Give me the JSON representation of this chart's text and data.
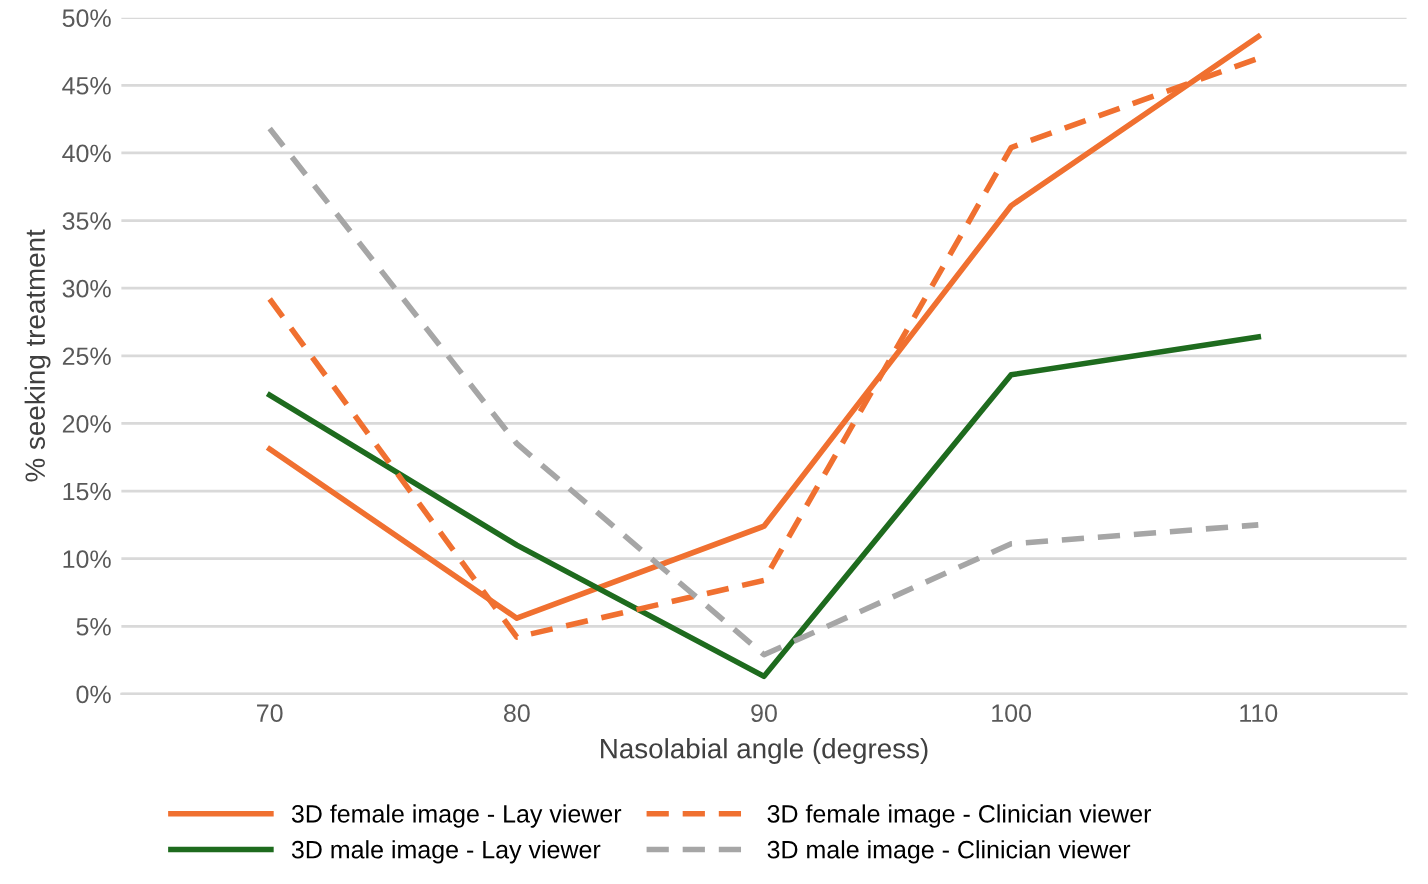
{
  "chart_data": {
    "type": "line",
    "xlabel": "Nasolabial angle (degress)",
    "ylabel": "% seeking treatment",
    "categories": [
      "70",
      "80",
      "90",
      "100",
      "110"
    ],
    "series": [
      {
        "name": "3D female image - Lay viewer",
        "color": "#f07030",
        "line_style": "solid",
        "values": [
          18.1,
          5.6,
          12.4,
          36.1,
          48.6
        ]
      },
      {
        "name": "3D male image - Lay viewer",
        "color": "#1e6b1e",
        "line_style": "solid",
        "values": [
          22.1,
          11.0,
          1.3,
          23.6,
          26.4
        ]
      },
      {
        "name": "3D female image - Clinician viewer",
        "color": "#f07030",
        "line_style": "dashed",
        "values": [
          29.2,
          4.2,
          8.4,
          40.4,
          47.0
        ]
      },
      {
        "name": "3D male image - Clinician viewer",
        "color": "#a6a6a6",
        "line_style": "dashed",
        "values": [
          41.8,
          18.5,
          2.9,
          11.1,
          12.5
        ]
      }
    ],
    "ylim": [
      0,
      50
    ],
    "yticks": [
      {
        "value": 0,
        "label": "0%"
      },
      {
        "value": 5,
        "label": "5%"
      },
      {
        "value": 10,
        "label": "10%"
      },
      {
        "value": 15,
        "label": "15%"
      },
      {
        "value": 20,
        "label": "20%"
      },
      {
        "value": 25,
        "label": "25%"
      },
      {
        "value": 30,
        "label": "30%"
      },
      {
        "value": 35,
        "label": "35%"
      },
      {
        "value": 40,
        "label": "40%"
      },
      {
        "value": 45,
        "label": "45%"
      },
      {
        "value": 50,
        "label": "50%"
      }
    ],
    "grid": "y",
    "legend": "bottom",
    "marker": "none"
  }
}
